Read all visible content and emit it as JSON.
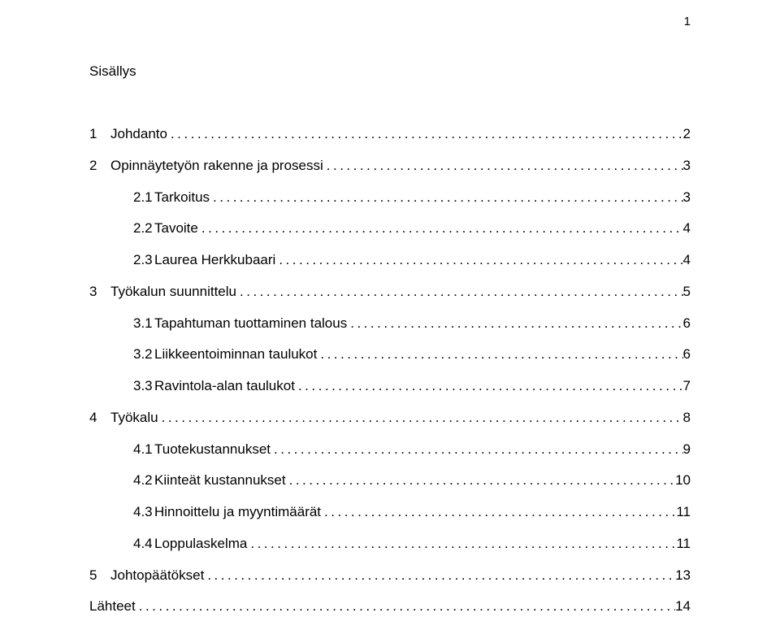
{
  "colors": {
    "background": "#ffffff",
    "text": "#000000"
  },
  "typography": {
    "font_family": "Trebuchet MS",
    "body_fontsize_pt": 12,
    "line_height": 2.28
  },
  "page_number": "1",
  "toc": {
    "title": "Sisällys",
    "dot_leader_char": ".",
    "entries": [
      {
        "level": 1,
        "number": "1",
        "title": "Johdanto",
        "page": "2"
      },
      {
        "level": 1,
        "number": "2",
        "title": "Opinnäytetyön rakenne ja prosessi",
        "page": "3"
      },
      {
        "level": 2,
        "number": "2.1",
        "title": "Tarkoitus",
        "page": "3"
      },
      {
        "level": 2,
        "number": "2.2",
        "title": "Tavoite",
        "page": "4"
      },
      {
        "level": 2,
        "number": "2.3",
        "title": "Laurea Herkkubaari",
        "page": "4"
      },
      {
        "level": 1,
        "number": "3",
        "title": "Työkalun suunnittelu",
        "page": "5"
      },
      {
        "level": 2,
        "number": "3.1",
        "title": "Tapahtuman tuottaminen talous",
        "page": "6"
      },
      {
        "level": 2,
        "number": "3.2",
        "title": "Liikkeentoiminnan taulukot",
        "page": "6"
      },
      {
        "level": 2,
        "number": "3.3",
        "title": "Ravintola-alan taulukot",
        "page": "7"
      },
      {
        "level": 1,
        "number": "4",
        "title": "Työkalu",
        "page": "8"
      },
      {
        "level": 2,
        "number": "4.1",
        "title": "Tuotekustannukset",
        "page": "9"
      },
      {
        "level": 2,
        "number": "4.2",
        "title": "Kiinteät kustannukset",
        "page": "10"
      },
      {
        "level": 2,
        "number": "4.3",
        "title": "Hinnoittelu ja myyntimäärät",
        "page": "11"
      },
      {
        "level": 2,
        "number": "4.4",
        "title": "Loppulaskelma",
        "page": "11"
      },
      {
        "level": 1,
        "number": "5",
        "title": "Johtopäätökset",
        "page": "13"
      },
      {
        "level": 0,
        "number": "",
        "title": "Lähteet",
        "page": "14"
      }
    ]
  }
}
